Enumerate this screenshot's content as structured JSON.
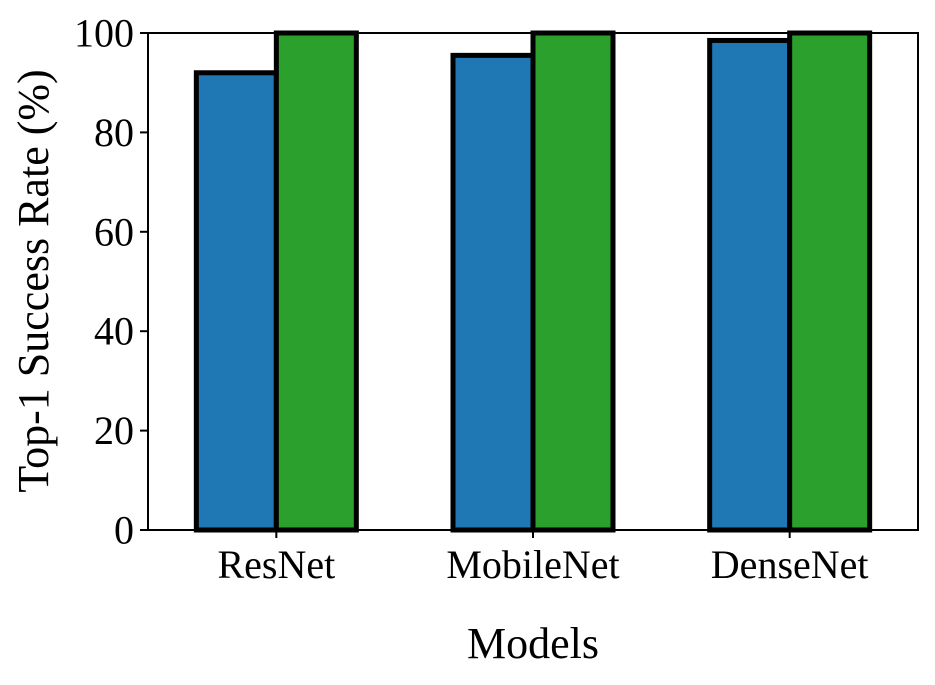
{
  "chart_data": {
    "type": "bar",
    "categories": [
      "ResNet",
      "MobileNet",
      "DenseNet"
    ],
    "series": [
      {
        "values": [
          92,
          95.5,
          98.5
        ],
        "color": "#1f77b4"
      },
      {
        "values": [
          100,
          100,
          100
        ],
        "color": "#2ca02c"
      }
    ],
    "xlabel": "Models",
    "ylabel": "Top-1 Success Rate (%)",
    "ylim": [
      0,
      100
    ],
    "yticks": [
      "0",
      "20",
      "40",
      "60",
      "80",
      "100"
    ],
    "grid": false,
    "legend": "none",
    "bar_edge_color": "#000000"
  }
}
